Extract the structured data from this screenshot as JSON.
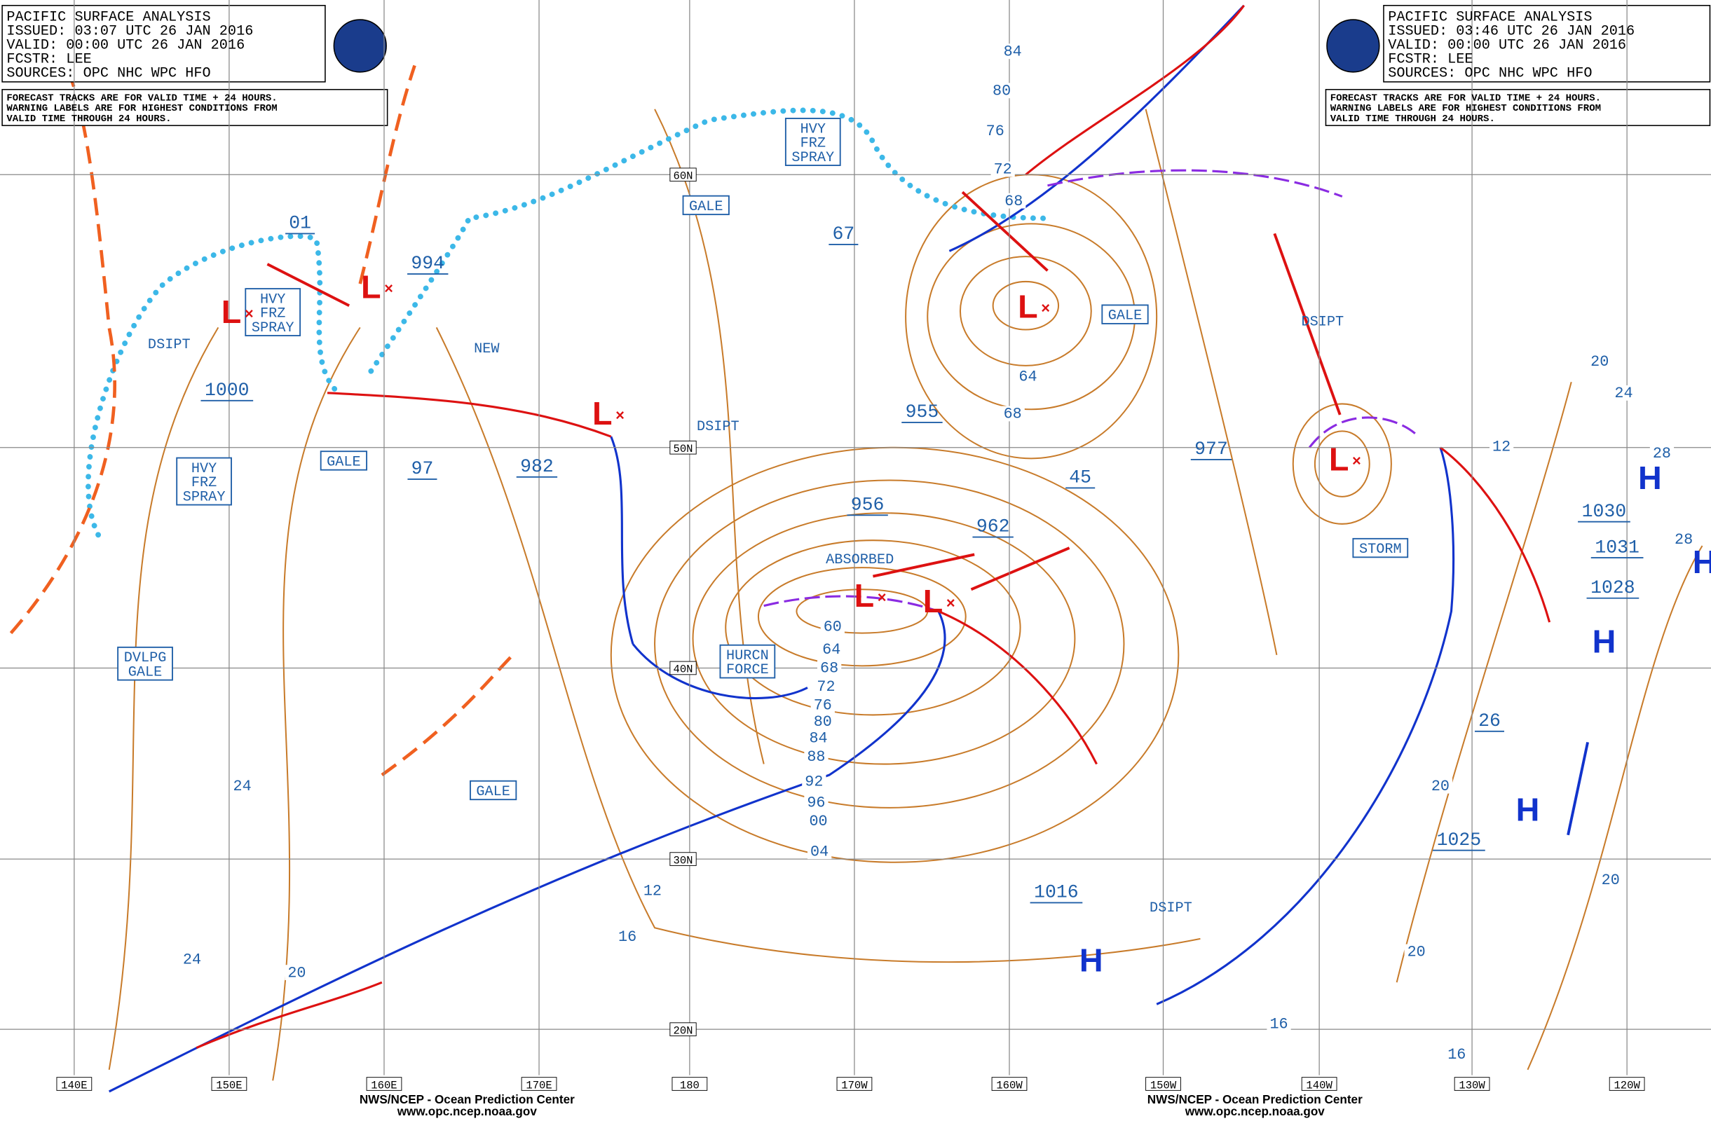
{
  "header_left": {
    "lines": [
      "PACIFIC SURFACE ANALYSIS",
      "ISSUED: 03:07 UTC 26 JAN 2016",
      "VALID:  00:00 UTC 26 JAN 2016",
      "FCSTR:  LEE",
      "SOURCES: OPC NHC WPC HFO"
    ],
    "note": [
      "FORECAST TRACKS ARE FOR VALID TIME + 24 HOURS.",
      "WARNING LABELS ARE FOR HIGHEST CONDITIONS FROM",
      "VALID TIME THROUGH 24 HOURS."
    ]
  },
  "header_right": {
    "lines": [
      "PACIFIC SURFACE ANALYSIS",
      "ISSUED: 03:46 UTC 26 JAN 2016",
      "VALID:  00:00 UTC 26 JAN 2016",
      "FCSTR:  LEE",
      "SOURCES: OPC NHC WPC HFO"
    ],
    "note": [
      "FORECAST TRACKS ARE FOR VALID TIME + 24 HOURS.",
      "WARNING LABELS ARE FOR HIGHEST CONDITIONS FROM",
      "VALID TIME THROUGH 24 HOURS."
    ]
  },
  "lat_labels": [
    "60N",
    "50N",
    "40N",
    "30N",
    "20N"
  ],
  "lon_labels": [
    "140E",
    "150E",
    "160E",
    "170E",
    "180",
    "170W",
    "160W",
    "150W",
    "140W",
    "130W",
    "120W"
  ],
  "center_pressures": [
    "01",
    "994",
    "1000",
    "97",
    "982",
    "67",
    "955",
    "956",
    "962",
    "45",
    "977",
    "1016",
    "1025",
    "26",
    "1030",
    "1031",
    "1028"
  ],
  "isobar_labels": [
    "84",
    "80",
    "76",
    "72",
    "68",
    "64",
    "68",
    "60",
    "64",
    "68",
    "72",
    "76",
    "80",
    "84",
    "88",
    "92",
    "96",
    "00",
    "04",
    "12",
    "16",
    "24",
    "24",
    "20",
    "20",
    "20",
    "16",
    "16",
    "20",
    "24",
    "28",
    "28",
    "20",
    "12"
  ],
  "warnings": [
    [
      "HVY",
      "FRZ",
      "SPRAY"
    ],
    [
      "HVY",
      "FRZ",
      "SPRAY"
    ],
    [
      "HVY",
      "FRZ",
      "SPRAY"
    ],
    [
      "GALE"
    ],
    [
      "GALE"
    ],
    [
      "GALE"
    ],
    [
      "GALE"
    ],
    [
      "DVLPG",
      "GALE"
    ],
    [
      "HURCN",
      "FORCE"
    ],
    [
      "STORM"
    ]
  ],
  "remarks": [
    "DSIPT",
    "DSIPT",
    "DSIPT",
    "DSIPT",
    "NEW",
    "ABSORBED"
  ],
  "lows": [
    "L",
    "L",
    "L",
    "L",
    "L",
    "L",
    "L"
  ],
  "highs": [
    "H",
    "H",
    "H",
    "H",
    "H"
  ],
  "footer_left": [
    "NWS/NCEP - Ocean Prediction Center",
    "www.opc.ncep.noaa.gov"
  ],
  "footer_right": [
    "NWS/NCEP - Ocean Prediction Center",
    "www.opc.ncep.noaa.gov"
  ]
}
